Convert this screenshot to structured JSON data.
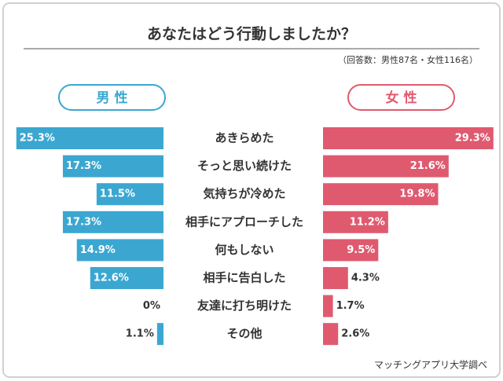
{
  "chart_data": {
    "type": "butterfly",
    "title": "あなたはどう行動しましたか？",
    "subtitle": "（回答数：男性87名・女性116名）",
    "source": "マッチングアプリ大学調べ",
    "categories": [
      "あきらめた",
      "そっと思い続けた",
      "気持ちが冷めた",
      "相手にアプローチした",
      "何もしない",
      "相手に告白した",
      "友達に打ち明けた",
      "その他"
    ],
    "series": [
      {
        "name": "男 性",
        "color": "#3ba7d1",
        "values": [
          25.3,
          17.3,
          11.5,
          17.3,
          14.9,
          12.6,
          0,
          1.1
        ],
        "value_labels": [
          "25.3%",
          "17.3%",
          "11.5%",
          "17.3%",
          "14.9%",
          "12.6%",
          "0%",
          "1.1%"
        ]
      },
      {
        "name": "女 性",
        "color": "#e05a6f",
        "values": [
          29.3,
          21.6,
          19.8,
          11.2,
          9.5,
          4.3,
          1.7,
          2.6
        ],
        "value_labels": [
          "29.3%",
          "21.6%",
          "19.8%",
          "11.2%",
          "9.5%",
          "4.3%",
          "1.7%",
          "2.6%"
        ]
      }
    ]
  }
}
